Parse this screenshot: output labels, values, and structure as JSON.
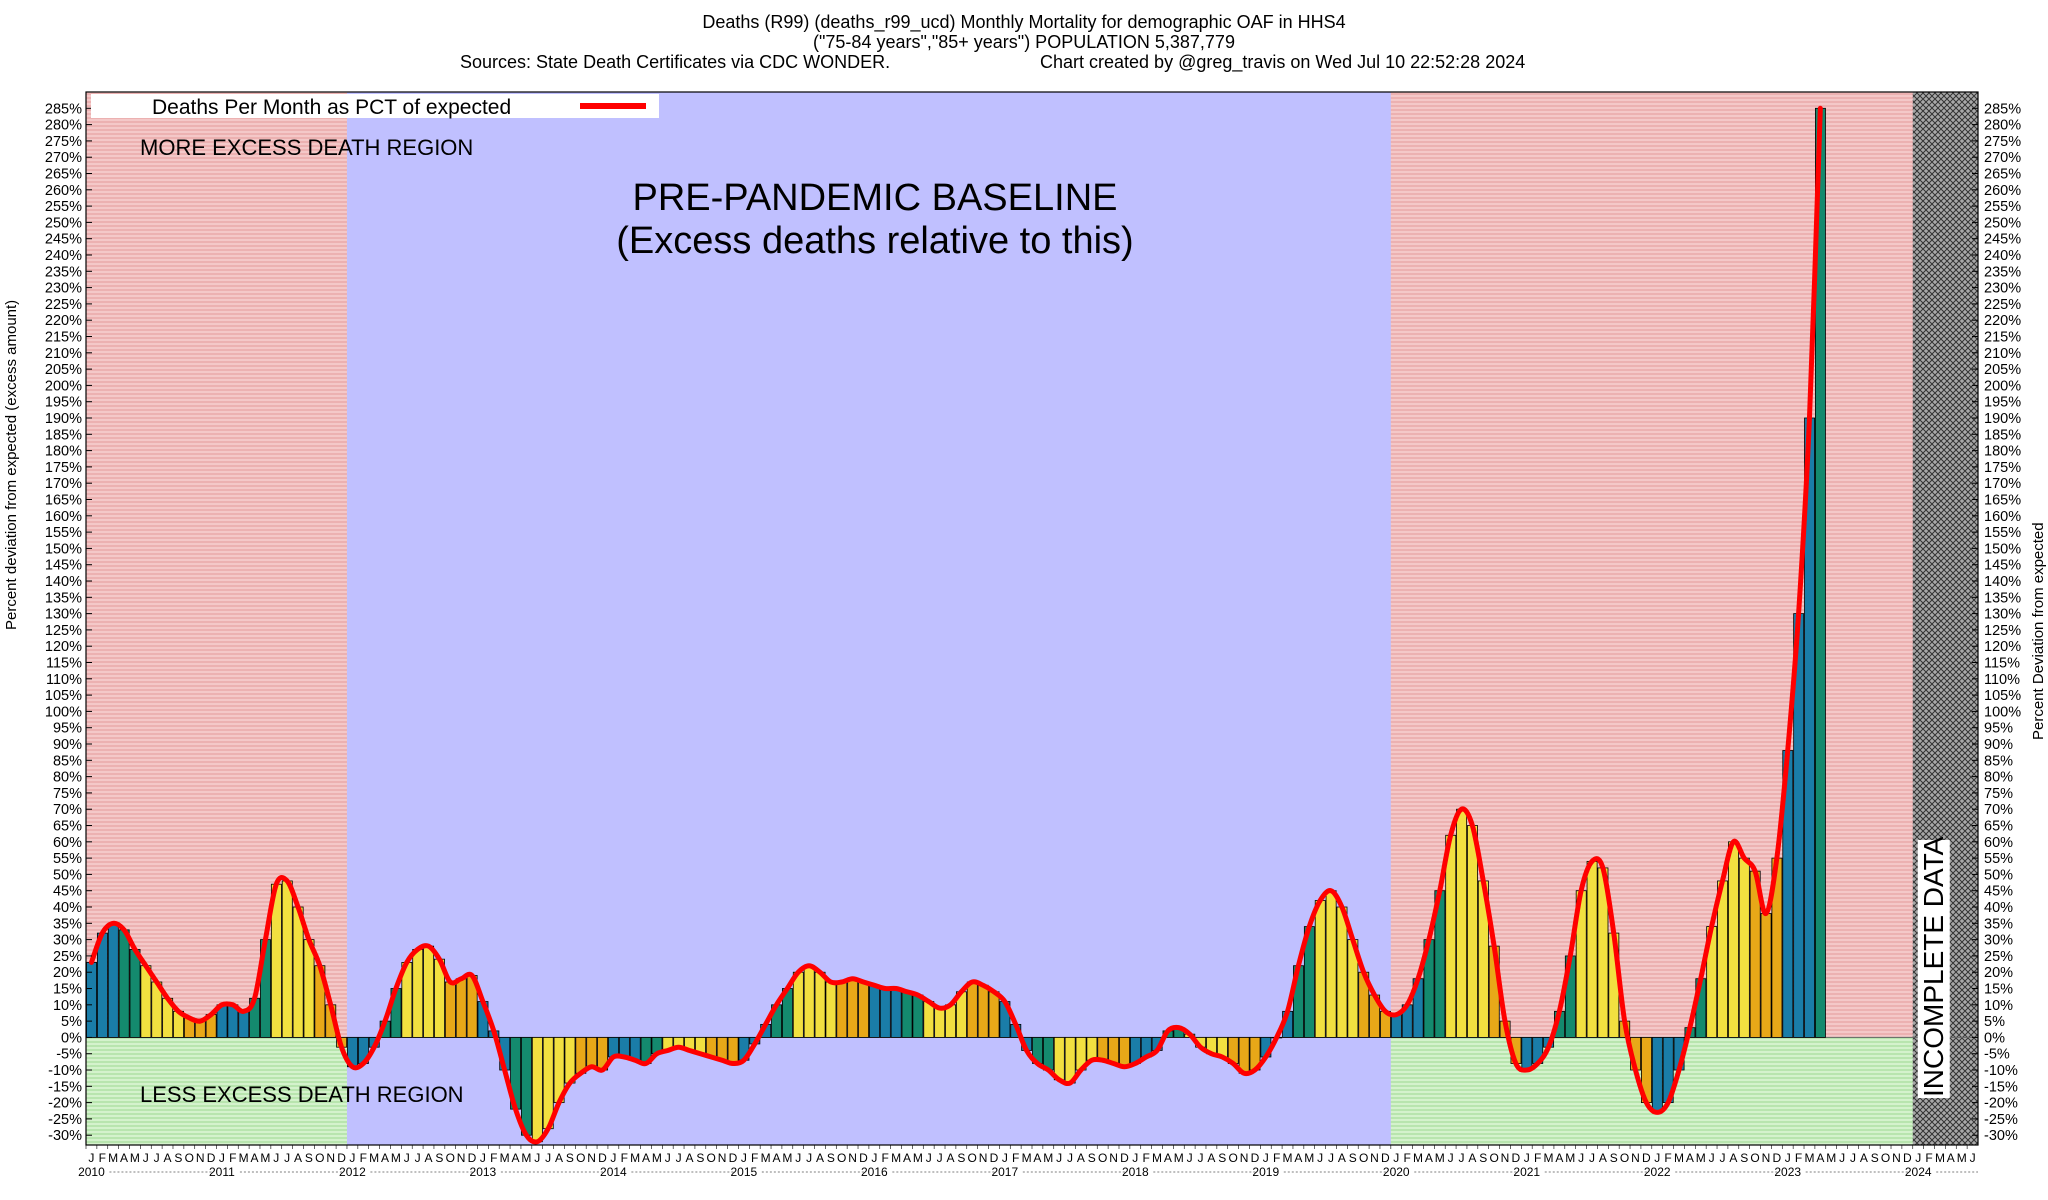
{
  "title": {
    "line1": "Deaths (R99) (deaths_r99_ucd) Monthly Mortality for demographic OAF in HHS4",
    "line2": "(\"75-84 years\",\"85+ years\") POPULATION 5,387,779",
    "sources": "Sources: State Death Certificates via CDC WONDER.",
    "credit": "Chart created by @greg_travis on Wed Jul 10 22:52:28 2024"
  },
  "axes": {
    "ylabel_left": "Percent deviation from expected (excess amount)",
    "ylabel_right": "Percent Deviation from expected"
  },
  "legend": {
    "label": "Deaths Per Month as PCT of expected",
    "color": "#ff0000"
  },
  "annotations": {
    "more_excess": "MORE EXCESS DEATH REGION",
    "less_excess": "LESS EXCESS DEATH REGION",
    "baseline_line1": "PRE-PANDEMIC BASELINE",
    "baseline_line2": "(Excess deaths relative to this)",
    "incomplete": "INCOMPLETE DATA"
  },
  "colors": {
    "excess_region": "#f0b8b8",
    "less_region": "#c8ecc0",
    "baseline_region": "#c0c0ff",
    "line": "#ff0000",
    "winter_bar": "#1a7da8",
    "teal_bar": "#148a6e",
    "yellow_bar": "#f2e040",
    "orange_bar": "#e8a818"
  },
  "chart_data": {
    "type": "bar",
    "start": "2010-01",
    "months": 174,
    "ylim": [
      -33,
      290
    ],
    "yticks_step": 5,
    "month_letters": [
      "J",
      "F",
      "M",
      "A",
      "M",
      "J",
      "J",
      "A",
      "S",
      "O",
      "N",
      "D"
    ],
    "years": [
      "2010",
      "2011",
      "2012",
      "2013",
      "2014",
      "2015",
      "2016",
      "2017",
      "2018",
      "2019",
      "2020",
      "2021",
      "2022",
      "2023",
      "2024"
    ],
    "baseline_period": [
      "2012-01",
      "2019-12"
    ],
    "incomplete_from": "2024-01",
    "series": [
      {
        "name": "Deaths Per Month as PCT of expected",
        "values": [
          23,
          32,
          35,
          33,
          27,
          22,
          17,
          12,
          8,
          6,
          5,
          7,
          10,
          10,
          8,
          12,
          30,
          47,
          48,
          40,
          30,
          22,
          10,
          -3,
          -9,
          -8,
          -3,
          5,
          15,
          23,
          27,
          28,
          24,
          17,
          18,
          19,
          11,
          2,
          -10,
          -22,
          -30,
          -32,
          -28,
          -20,
          -14,
          -11,
          -9,
          -10,
          -6,
          -6,
          -7,
          -8,
          -5,
          -4,
          -3,
          -4,
          -5,
          -6,
          -7,
          -8,
          -7,
          -2,
          4,
          10,
          15,
          20,
          22,
          20,
          17,
          17,
          18,
          17,
          16,
          15,
          15,
          14,
          13,
          11,
          9,
          10,
          14,
          17,
          16,
          14,
          11,
          4,
          -4,
          -8,
          -10,
          -13,
          -14,
          -10,
          -7,
          -7,
          -8,
          -9,
          -8,
          -6,
          -4,
          2,
          3,
          1,
          -3,
          -5,
          -6,
          -8,
          -11,
          -10,
          -6,
          0,
          8,
          22,
          34,
          42,
          45,
          40,
          30,
          20,
          13,
          8,
          7,
          10,
          18,
          30,
          45,
          62,
          70,
          65,
          48,
          28,
          5,
          -8,
          -10,
          -8,
          -3,
          8,
          25,
          45,
          54,
          52,
          32,
          5,
          -10,
          -20,
          -23,
          -20,
          -10,
          3,
          18,
          34,
          48,
          60,
          55,
          51,
          38,
          55,
          88,
          130,
          190,
          285
        ]
      }
    ]
  }
}
